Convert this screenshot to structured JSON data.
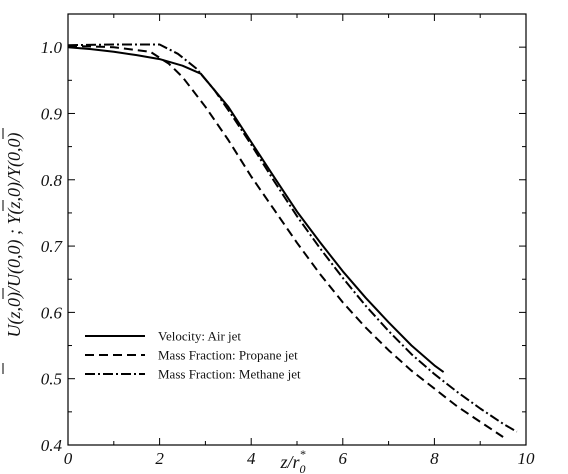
{
  "chart_data": {
    "type": "line",
    "xlabel": "z/r",
    "xlabel_sub": "0",
    "xlabel_sup": "*",
    "ylabel": "U(z,0)/U(0,0)  ;  Y(z,0)/Y(0,0)",
    "xlim": [
      0,
      10
    ],
    "ylim": [
      0.4,
      1.05
    ],
    "x_ticks": [
      0,
      2,
      4,
      6,
      8,
      10
    ],
    "x_tick_labels": [
      "0",
      "2",
      "4",
      "6",
      "8",
      "10"
    ],
    "y_ticks": [
      0.4,
      0.5,
      0.6,
      0.7,
      0.8,
      0.9,
      1.0
    ],
    "y_tick_labels": [
      "0.4",
      "0.5",
      "0.6",
      "0.7",
      "0.8",
      "0.9",
      "1.0"
    ],
    "grid": false,
    "legend_position": "bottom-left",
    "series": [
      {
        "name": "Velocity: Air jet",
        "style": "solid",
        "color": "#000000",
        "points": [
          [
            0,
            1.0
          ],
          [
            0.5,
            0.997
          ],
          [
            1,
            0.993
          ],
          [
            1.5,
            0.988
          ],
          [
            2,
            0.982
          ],
          [
            2.5,
            0.972
          ],
          [
            2.9,
            0.96
          ],
          [
            3.5,
            0.91
          ],
          [
            4,
            0.857
          ],
          [
            4.5,
            0.804
          ],
          [
            5,
            0.752
          ],
          [
            5.5,
            0.706
          ],
          [
            6,
            0.662
          ],
          [
            6.5,
            0.622
          ],
          [
            7,
            0.585
          ],
          [
            7.5,
            0.55
          ],
          [
            8,
            0.52
          ],
          [
            8.2,
            0.51
          ]
        ]
      },
      {
        "name": "Mass Fraction: Propane jet",
        "style": "dashed",
        "color": "#000000",
        "points": [
          [
            0,
            1.002
          ],
          [
            1,
            1.0
          ],
          [
            1.8,
            0.993
          ],
          [
            2.2,
            0.975
          ],
          [
            2.5,
            0.955
          ],
          [
            3,
            0.91
          ],
          [
            3.5,
            0.86
          ],
          [
            4,
            0.805
          ],
          [
            4.5,
            0.755
          ],
          [
            5,
            0.705
          ],
          [
            5.5,
            0.658
          ],
          [
            6,
            0.615
          ],
          [
            6.5,
            0.577
          ],
          [
            7,
            0.543
          ],
          [
            7.5,
            0.512
          ],
          [
            8,
            0.485
          ],
          [
            8.5,
            0.458
          ],
          [
            9,
            0.435
          ],
          [
            9.5,
            0.412
          ]
        ]
      },
      {
        "name": "Mass Fraction: Methane jet",
        "style": "dashdot",
        "color": "#000000",
        "points": [
          [
            0,
            1.003
          ],
          [
            1,
            1.004
          ],
          [
            2,
            1.004
          ],
          [
            2.4,
            0.99
          ],
          [
            2.8,
            0.968
          ],
          [
            3.2,
            0.935
          ],
          [
            3.6,
            0.895
          ],
          [
            4,
            0.853
          ],
          [
            4.5,
            0.798
          ],
          [
            5,
            0.745
          ],
          [
            5.5,
            0.697
          ],
          [
            6,
            0.652
          ],
          [
            6.5,
            0.61
          ],
          [
            7,
            0.572
          ],
          [
            7.5,
            0.537
          ],
          [
            8,
            0.507
          ],
          [
            8.5,
            0.48
          ],
          [
            9,
            0.455
          ],
          [
            9.5,
            0.432
          ],
          [
            9.8,
            0.42
          ]
        ]
      }
    ]
  }
}
